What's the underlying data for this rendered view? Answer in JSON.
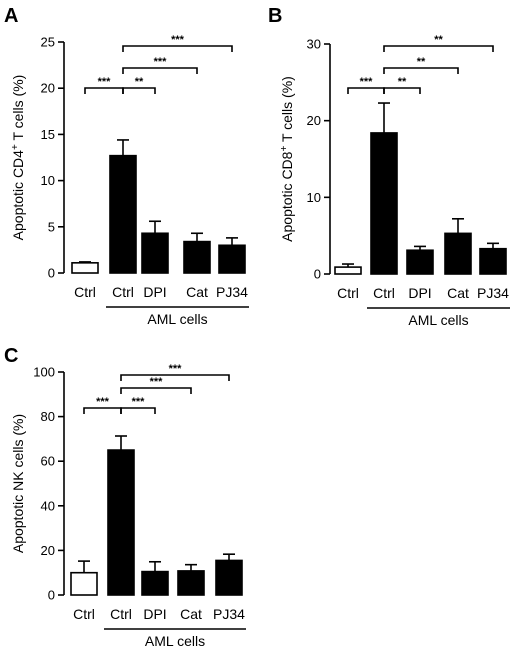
{
  "chart_data": [
    {
      "type": "bar",
      "panel": "A",
      "ylabel": "Apoptotic CD4",
      "ylabel_sup": "+",
      "ylabel_suffix": " T cells (%)",
      "categories": [
        "Ctrl",
        "Ctrl",
        "DPI",
        "Cat",
        "PJ34"
      ],
      "group_label": "AML cells",
      "values": [
        1.1,
        12.7,
        4.3,
        3.4,
        3.0
      ],
      "errors": [
        0.1,
        1.7,
        1.3,
        0.9,
        0.8
      ],
      "fills": [
        "white",
        "black",
        "black",
        "black",
        "black"
      ],
      "ylim": [
        0,
        25
      ],
      "yticks": [
        "0",
        "5",
        "10",
        "15",
        "20",
        "25"
      ],
      "significance": [
        {
          "from": 0,
          "to": 1,
          "label": "***"
        },
        {
          "from": 1,
          "to": 2,
          "label": "**"
        },
        {
          "from": 1,
          "to": 3,
          "label": "***"
        },
        {
          "from": 1,
          "to": 4,
          "label": "***"
        }
      ]
    },
    {
      "type": "bar",
      "panel": "B",
      "ylabel": "Apoptotic CD8",
      "ylabel_sup": "+",
      "ylabel_suffix": " T cells (%)",
      "categories": [
        "Ctrl",
        "Ctrl",
        "DPI",
        "Cat",
        "PJ34"
      ],
      "group_label": "AML cells",
      "values": [
        0.9,
        18.4,
        3.1,
        5.3,
        3.3
      ],
      "errors": [
        0.4,
        3.9,
        0.5,
        1.9,
        0.7
      ],
      "fills": [
        "white",
        "black",
        "black",
        "black",
        "black"
      ],
      "ylim": [
        0,
        30
      ],
      "yticks": [
        "0",
        "10",
        "20",
        "30"
      ],
      "significance": [
        {
          "from": 0,
          "to": 1,
          "label": "***"
        },
        {
          "from": 1,
          "to": 2,
          "label": "**"
        },
        {
          "from": 1,
          "to": 3,
          "label": "**"
        },
        {
          "from": 1,
          "to": 4,
          "label": "**"
        }
      ]
    },
    {
      "type": "bar",
      "panel": "C",
      "ylabel": "Apoptotic NK cells (%)",
      "ylabel_sup": "",
      "ylabel_suffix": "",
      "categories": [
        "Ctrl",
        "Ctrl",
        "DPI",
        "Cat",
        "PJ34"
      ],
      "group_label": "AML cells",
      "values": [
        10,
        65,
        10.5,
        10.8,
        15.5
      ],
      "errors": [
        5.2,
        6.3,
        4.4,
        2.8,
        2.8
      ],
      "fills": [
        "white",
        "black",
        "black",
        "black",
        "black"
      ],
      "ylim": [
        0,
        100
      ],
      "yticks": [
        "0",
        "20",
        "40",
        "60",
        "80",
        "100"
      ],
      "significance": [
        {
          "from": 0,
          "to": 1,
          "label": "***"
        },
        {
          "from": 1,
          "to": 2,
          "label": "***"
        },
        {
          "from": 1,
          "to": 3,
          "label": "***"
        },
        {
          "from": 1,
          "to": 4,
          "label": "***"
        }
      ]
    }
  ]
}
